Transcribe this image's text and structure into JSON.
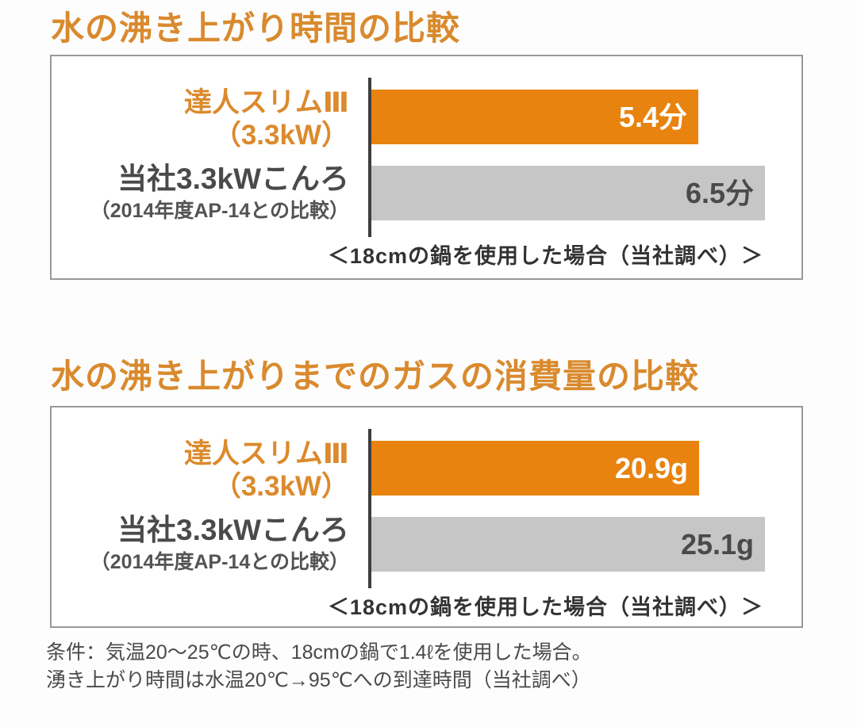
{
  "chart_data": [
    {
      "type": "bar",
      "orientation": "horizontal",
      "title": "水の沸き上がり時間の比較",
      "categories": [
        "達人スリムⅢ（3.3kW）",
        "当社3.3kWこんろ（2014年度AP-14との比較）"
      ],
      "series_labels": [
        {
          "line1": "達人スリムⅢ",
          "line2": "（3.3kW）"
        },
        {
          "line1": "当社3.3kWこんろ",
          "line2": "（2014年度AP-14との比較）"
        }
      ],
      "values": [
        5.4,
        6.5
      ],
      "unit": "分",
      "data_labels": [
        "5.4分",
        "6.5分"
      ],
      "bar_colors": [
        "#E8830F",
        "#C6C6C6"
      ],
      "note": "＜18cmの鍋を使用した場合（当社調べ）＞",
      "grid": false,
      "legend": "none"
    },
    {
      "type": "bar",
      "orientation": "horizontal",
      "title": "水の沸き上がりまでのガスの消費量の比較",
      "categories": [
        "達人スリムⅢ（3.3kW）",
        "当社3.3kWこんろ（2014年度AP-14との比較）"
      ],
      "series_labels": [
        {
          "line1": "達人スリムⅢ",
          "line2": "（3.3kW）"
        },
        {
          "line1": "当社3.3kWこんろ",
          "line2": "（2014年度AP-14との比較）"
        }
      ],
      "values": [
        20.9,
        25.1
      ],
      "unit": "g",
      "data_labels": [
        "20.9g",
        "25.1g"
      ],
      "bar_colors": [
        "#E8830F",
        "#C6C6C6"
      ],
      "note": "＜18cmの鍋を使用した場合（当社調べ）＞",
      "grid": false,
      "legend": "none"
    }
  ],
  "footnote": {
    "line1": "条件：気温20～25℃の時、18cmの鍋で1.4ℓを使用した場合。",
    "line2": "湧き上がり時間は水温20℃→95℃への到達時間（当社調べ）"
  },
  "colors": {
    "title_orange": "#D98A2E",
    "bar_orange": "#E8830F",
    "bar_gray": "#C6C6C6",
    "text_dark": "#4A4A4A",
    "axis": "#3E3E3E",
    "panel_border": "#97999C"
  }
}
